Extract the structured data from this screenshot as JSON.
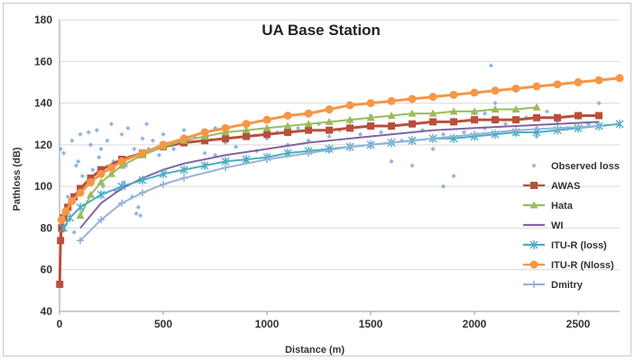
{
  "chart_data": {
    "type": "scatter",
    "title": "UA Base Station",
    "xlabel": "Distance (m)",
    "ylabel": "Pathloss (dB)",
    "xlim": [
      0,
      2700
    ],
    "ylim": [
      40,
      180
    ],
    "xticks": [
      "0",
      "500",
      "1000",
      "1500",
      "2000",
      "2500"
    ],
    "xtick_values": [
      0,
      500,
      1000,
      1500,
      2000,
      2500
    ],
    "yticks": [
      "40",
      "60",
      "80",
      "100",
      "120",
      "140",
      "160",
      "180"
    ],
    "ytick_values": [
      40,
      60,
      80,
      100,
      120,
      140,
      160,
      180
    ],
    "grid": "horizontal",
    "legend_position": "right",
    "series": [
      {
        "name": "Observed loss",
        "kind": "scatter",
        "color": "#7fa7d9",
        "marker": "diamond",
        "x": [
          5,
          20,
          40,
          60,
          80,
          100,
          120,
          150,
          180,
          200,
          230,
          260,
          300,
          330,
          360,
          380,
          400,
          420,
          450,
          480,
          500,
          550,
          600,
          650,
          700,
          750,
          800,
          850,
          900,
          950,
          1000,
          1050,
          1100,
          1150,
          1200,
          1250,
          1300,
          1350,
          1400,
          1450,
          1500,
          1550,
          1600,
          1650,
          1700,
          1750,
          1800,
          1850,
          1900,
          1950,
          2000,
          2050,
          2080,
          2100,
          2150,
          2200,
          2250,
          2300,
          2350,
          2400,
          2450,
          2500,
          2550,
          2600,
          30,
          70,
          110,
          160,
          210,
          270,
          320,
          370,
          430,
          600,
          750,
          900,
          1100,
          1300,
          1500,
          1700,
          1900,
          2100,
          2300,
          2500,
          50,
          90,
          140,
          190,
          250,
          310,
          350,
          390,
          1600,
          1850,
          2050
        ],
        "y": [
          118,
          116,
          95,
          122,
          110,
          125,
          100,
          120,
          127,
          118,
          122,
          112,
          125,
          128,
          118,
          90,
          123,
          130,
          122,
          115,
          125,
          118,
          127,
          124,
          116,
          128,
          121,
          119,
          125,
          117,
          123,
          126,
          120,
          128,
          122,
          130,
          124,
          127,
          131,
          125,
          134,
          126,
          128,
          122,
          130,
          127,
          118,
          125,
          132,
          126,
          135,
          128,
          158,
          140,
          130,
          125,
          133,
          128,
          136,
          131,
          128,
          133,
          130,
          140,
          85,
          78,
          105,
          108,
          100,
          98,
          110,
          87,
          118,
          120,
          115,
          112,
          125,
          117,
          120,
          110,
          105,
          132,
          124,
          128,
          92,
          112,
          126,
          114,
          130,
          102,
          95,
          86,
          112,
          100,
          135
        ]
      },
      {
        "name": "AWAS",
        "kind": "line",
        "color": "#b94f3c",
        "marker": "square",
        "x": [
          1,
          5,
          10,
          20,
          40,
          70,
          100,
          150,
          200,
          300,
          400,
          500,
          600,
          700,
          800,
          900,
          1000,
          1100,
          1200,
          1300,
          1400,
          1500,
          1600,
          1700,
          1800,
          1900,
          2000,
          2100,
          2200,
          2300,
          2400,
          2500,
          2600
        ],
        "y": [
          53,
          74,
          80,
          85,
          90,
          95,
          99,
          104,
          108,
          113,
          116,
          119,
          121,
          122,
          123,
          124,
          125,
          126,
          127,
          127,
          128,
          129,
          129,
          130,
          131,
          131,
          132,
          132,
          132,
          133,
          133,
          134,
          134
        ]
      },
      {
        "name": "Hata",
        "kind": "line",
        "color": "#9bbb59",
        "marker": "triangle",
        "x": [
          100,
          150,
          200,
          250,
          300,
          400,
          500,
          600,
          700,
          800,
          900,
          1000,
          1100,
          1200,
          1300,
          1400,
          1500,
          1600,
          1700,
          1800,
          1900,
          2000,
          2100,
          2200,
          2300
        ],
        "y": [
          86,
          96,
          102,
          106,
          110,
          115,
          119,
          122,
          124,
          126,
          127,
          128,
          129,
          130,
          131,
          132,
          133,
          134,
          135,
          135,
          136,
          136,
          137,
          137,
          138
        ]
      },
      {
        "name": "WI",
        "kind": "line",
        "color": "#8064a2",
        "marker": "none",
        "x": [
          100,
          200,
          300,
          400,
          500,
          600,
          800,
          1000,
          1200,
          1400,
          1600,
          1800,
          2000,
          2200,
          2400,
          2600
        ],
        "y": [
          80,
          92,
          99,
          104,
          108,
          111,
          115,
          118,
          121,
          123,
          125,
          127,
          128,
          129,
          130,
          131
        ]
      },
      {
        "name": "ITU-R (loss)",
        "kind": "line",
        "color": "#4bacc6",
        "marker": "star",
        "x": [
          20,
          50,
          100,
          200,
          300,
          400,
          500,
          600,
          700,
          800,
          900,
          1000,
          1100,
          1200,
          1300,
          1400,
          1500,
          1600,
          1700,
          1800,
          1900,
          2000,
          2100,
          2200,
          2300,
          2400,
          2500,
          2600,
          2700
        ],
        "y": [
          80,
          85,
          90,
          96,
          100,
          103,
          106,
          108,
          110,
          112,
          113,
          114,
          116,
          117,
          118,
          119,
          120,
          121,
          122,
          123,
          123,
          124,
          125,
          126,
          126,
          127,
          128,
          129,
          130
        ]
      },
      {
        "name": "ITU-R (Nloss)",
        "kind": "line",
        "color": "#f79646",
        "marker": "circle",
        "x": [
          10,
          30,
          60,
          100,
          150,
          200,
          250,
          300,
          400,
          500,
          600,
          700,
          800,
          900,
          1000,
          1100,
          1200,
          1300,
          1400,
          1500,
          1600,
          1700,
          1800,
          1900,
          2000,
          2100,
          2200,
          2300,
          2400,
          2500,
          2600,
          2700
        ],
        "y": [
          84,
          88,
          93,
          97,
          102,
          106,
          109,
          112,
          116,
          120,
          123,
          126,
          128,
          130,
          132,
          134,
          135,
          137,
          139,
          140,
          141,
          142,
          143,
          144,
          145,
          146,
          147,
          148,
          149,
          150,
          151,
          152
        ]
      },
      {
        "name": "Dmitry",
        "kind": "line",
        "color": "#95b3d7",
        "marker": "plus",
        "x": [
          100,
          200,
          300,
          400,
          500,
          600,
          800,
          1000,
          1200,
          1400,
          1600,
          1800,
          2000,
          2200,
          2400,
          2600
        ],
        "y": [
          74,
          84,
          92,
          97,
          101,
          104,
          109,
          113,
          116,
          119,
          121,
          123,
          125,
          127,
          128,
          129
        ]
      }
    ]
  }
}
